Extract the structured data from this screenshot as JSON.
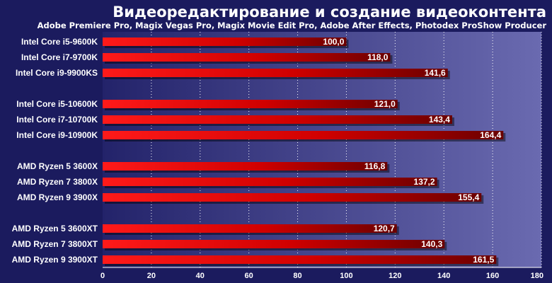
{
  "chart_data": {
    "type": "bar",
    "orientation": "horizontal",
    "title": "Видеоредактирование и создание видеоконтента",
    "subtitle": "Adobe Premiere Pro, Magix Vegas Pro, Magix Movie Edit Pro, Adobe After Effects, Photodex ProShow Producer",
    "categories": [
      "Intel Core i5-9600K",
      "Intel Core i7-9700K",
      "Intel Core i9-9900KS",
      "Intel Core i5-10600K",
      "Intel Core i7-10700K",
      "Intel Core i9-10900K",
      "AMD Ryzen 5 3600X",
      "AMD Ryzen 7 3800X",
      "AMD Ryzen 9 3900X",
      "AMD Ryzen 5 3600XT",
      "AMD Ryzen 7 3800XT",
      "AMD Ryzen 9 3900XT"
    ],
    "groups": [
      3,
      3,
      3,
      3
    ],
    "values": [
      100.0,
      118.0,
      141.6,
      121.0,
      143.4,
      164.4,
      116.8,
      137.2,
      155.4,
      120.7,
      140.3,
      161.5
    ],
    "value_labels": [
      "100,0",
      "118,0",
      "141,6",
      "121,0",
      "143,4",
      "164,4",
      "116,8",
      "137,2",
      "155,4",
      "120,7",
      "140,3",
      "161,5"
    ],
    "xlim": [
      0,
      180
    ],
    "xticks": [
      0,
      20,
      40,
      60,
      80,
      100,
      120,
      140,
      160,
      180
    ],
    "grid": true,
    "legend": "none",
    "colors": {
      "background": "#1b1b5e",
      "plot_dark": "#23236a",
      "plot_light": "#6a6ab0",
      "bar_light": "#ff1a1a",
      "bar_dark": "#6a0000",
      "grid": "#ffffff",
      "text": "#ffffff"
    }
  }
}
